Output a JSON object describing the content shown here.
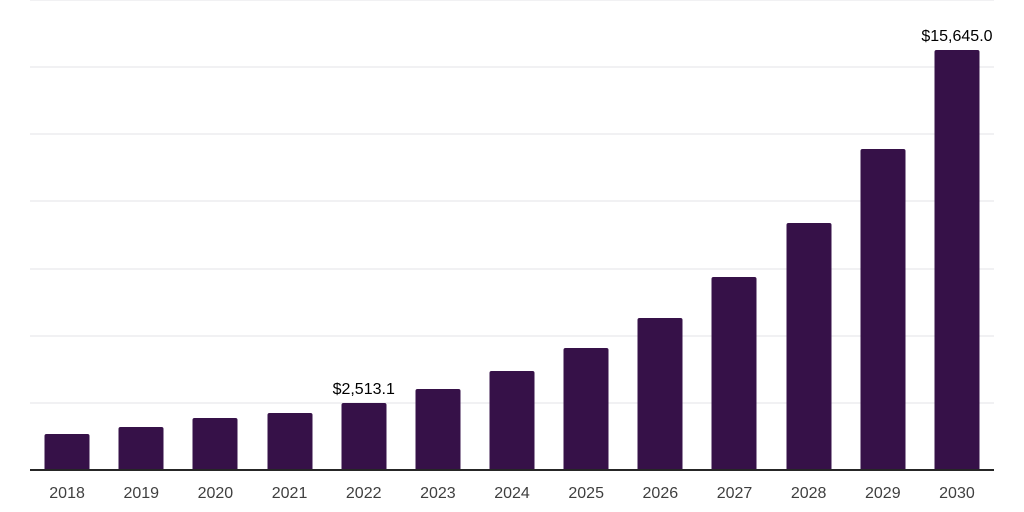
{
  "chart_data": {
    "type": "bar",
    "title": "",
    "xlabel": "",
    "ylabel": "",
    "categories": [
      "2018",
      "2019",
      "2020",
      "2021",
      "2022",
      "2023",
      "2024",
      "2025",
      "2026",
      "2027",
      "2028",
      "2029",
      "2030"
    ],
    "values": [
      1340,
      1610,
      1950,
      2125,
      2513.1,
      3030,
      3705,
      4545,
      5660,
      7190,
      9185,
      11950,
      15645
    ],
    "value_labels": {
      "2022": "$2,513.1",
      "2030": "$15,645.0"
    },
    "ylim": [
      0,
      17500
    ],
    "gridline_step": 2500,
    "grid": true,
    "legend": false,
    "bar_color": "#361148",
    "gridline_color": "#f1f1f3",
    "axis_line_color": "#262626",
    "tick_label_color": "#3f3f3f",
    "value_label_color": "#000000",
    "background_color": "#ffffff"
  }
}
